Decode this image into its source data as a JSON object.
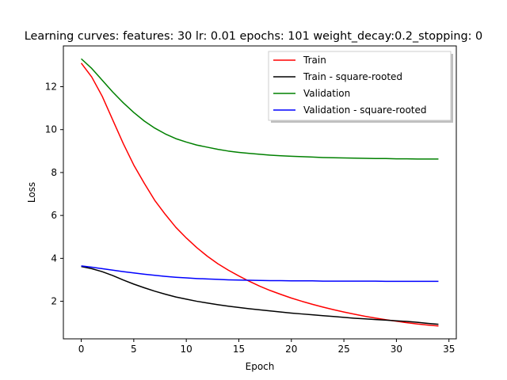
{
  "chart_data": {
    "type": "line",
    "title": "Learning curves: features: 30 lr: 0.01 epochs: 101 weight_decay:0.2_stopping: 0",
    "xlabel": "Epoch",
    "ylabel": "Loss",
    "xlim": [
      -1.7,
      35.7
    ],
    "ylim": [
      0.25,
      13.9
    ],
    "xticks": [
      0,
      5,
      10,
      15,
      20,
      25,
      30,
      35
    ],
    "yticks": [
      2,
      4,
      6,
      8,
      10,
      12
    ],
    "grid": false,
    "legend_position": "upper right",
    "x": [
      0,
      1,
      2,
      3,
      4,
      5,
      6,
      7,
      8,
      9,
      10,
      11,
      12,
      13,
      14,
      15,
      16,
      17,
      18,
      19,
      20,
      21,
      22,
      23,
      24,
      25,
      26,
      27,
      28,
      29,
      30,
      31,
      32,
      33,
      34
    ],
    "series": [
      {
        "name": "Train",
        "color": "#ff0000",
        "values": [
          13.1,
          12.45,
          11.55,
          10.45,
          9.35,
          8.35,
          7.5,
          6.7,
          6.05,
          5.45,
          4.95,
          4.5,
          4.1,
          3.75,
          3.45,
          3.18,
          2.93,
          2.7,
          2.5,
          2.32,
          2.15,
          2.0,
          1.86,
          1.73,
          1.61,
          1.5,
          1.4,
          1.3,
          1.22,
          1.14,
          1.07,
          1.0,
          0.94,
          0.89,
          0.85
        ]
      },
      {
        "name": "Train - square-rooted",
        "color": "#000000",
        "values": [
          3.62,
          3.52,
          3.38,
          3.2,
          2.99,
          2.8,
          2.63,
          2.47,
          2.33,
          2.2,
          2.1,
          2.0,
          1.92,
          1.84,
          1.77,
          1.71,
          1.65,
          1.6,
          1.55,
          1.5,
          1.45,
          1.41,
          1.37,
          1.33,
          1.29,
          1.25,
          1.21,
          1.18,
          1.15,
          1.12,
          1.09,
          1.06,
          1.02,
          0.97,
          0.93
        ]
      },
      {
        "name": "Validation",
        "color": "#008000",
        "values": [
          13.3,
          12.85,
          12.3,
          11.75,
          11.25,
          10.8,
          10.4,
          10.07,
          9.8,
          9.58,
          9.42,
          9.28,
          9.18,
          9.08,
          9.0,
          8.94,
          8.89,
          8.85,
          8.81,
          8.78,
          8.76,
          8.74,
          8.72,
          8.7,
          8.69,
          8.68,
          8.67,
          8.66,
          8.65,
          8.65,
          8.64,
          8.64,
          8.63,
          8.63,
          8.63
        ]
      },
      {
        "name": "Validation - square-rooted",
        "color": "#0000ff",
        "values": [
          3.65,
          3.59,
          3.52,
          3.45,
          3.38,
          3.32,
          3.26,
          3.21,
          3.16,
          3.12,
          3.09,
          3.06,
          3.04,
          3.02,
          3.0,
          2.99,
          2.98,
          2.97,
          2.96,
          2.96,
          2.95,
          2.95,
          2.95,
          2.94,
          2.94,
          2.94,
          2.94,
          2.94,
          2.94,
          2.93,
          2.93,
          2.93,
          2.93,
          2.93,
          2.93
        ]
      }
    ]
  }
}
